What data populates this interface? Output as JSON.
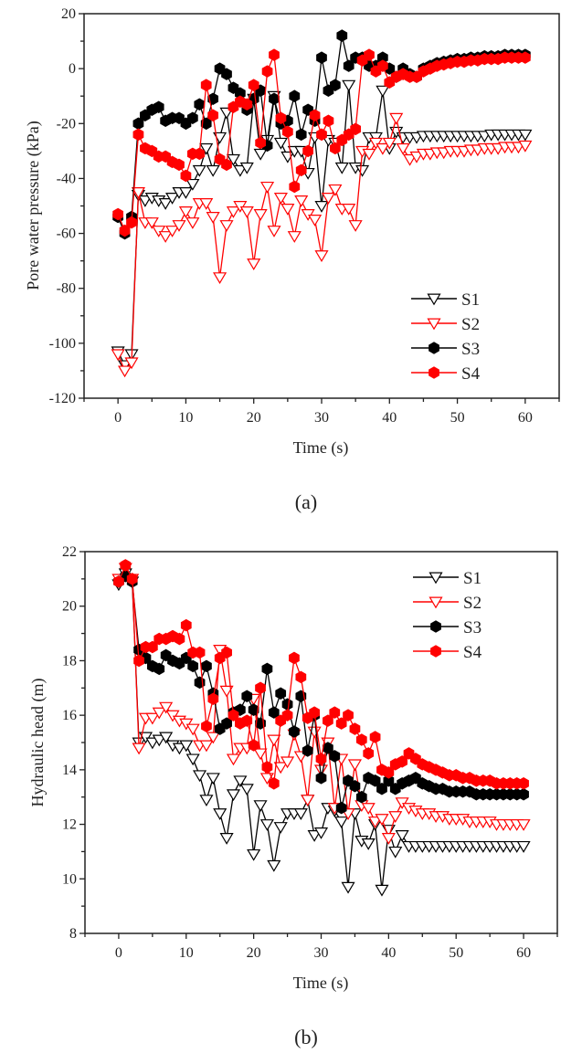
{
  "figure": {
    "panels": [
      "(a)",
      "(b)"
    ]
  },
  "chart_data": [
    {
      "type": "line",
      "panel_label": "(a)",
      "title": "",
      "xlabel": "Time (s)",
      "ylabel": "Pore water pressure (kPa)",
      "xlim": [
        -5,
        65
      ],
      "ylim": [
        -120,
        20
      ],
      "xticks": [
        0,
        10,
        20,
        30,
        40,
        50,
        60
      ],
      "yticks": [
        -120,
        -100,
        -80,
        -60,
        -40,
        -20,
        0,
        20
      ],
      "grid": false,
      "legend_position": "bottom-right",
      "x": [
        0,
        1,
        2,
        3,
        4,
        5,
        6,
        7,
        8,
        9,
        10,
        11,
        12,
        13,
        14,
        15,
        16,
        17,
        18,
        19,
        20,
        21,
        22,
        23,
        24,
        25,
        26,
        27,
        28,
        29,
        30,
        31,
        32,
        33,
        34,
        35,
        36,
        37,
        38,
        39,
        40,
        41,
        42,
        43,
        44,
        45,
        46,
        47,
        48,
        49,
        50,
        51,
        52,
        53,
        54,
        55,
        56,
        57,
        58,
        59,
        60
      ],
      "series": [
        {
          "name": "S1",
          "color": "#000000",
          "marker": "triangle-down-open",
          "values": [
            -103,
            -108,
            -104,
            -46,
            -48,
            -47,
            -48,
            -49,
            -47,
            -45,
            -45,
            -42,
            -37,
            -29,
            -37,
            -25,
            -16,
            -33,
            -37,
            -36,
            -11,
            -31,
            -26,
            -10,
            -27,
            -32,
            -30,
            -30,
            -38,
            -25,
            -50,
            -26,
            -27,
            -36,
            -6,
            -36,
            -37,
            -25,
            -25,
            -8,
            -29,
            -23,
            -25,
            -25,
            -25,
            -24.5,
            -24.5,
            -24.5,
            -24.5,
            -24.5,
            -24.5,
            -24.5,
            -24.5,
            -24.5,
            -24.5,
            -24,
            -24,
            -24,
            -24,
            -24,
            -24
          ]
        },
        {
          "name": "S2",
          "color": "#ff0000",
          "marker": "triangle-down-open",
          "values": [
            -104,
            -110,
            -107,
            -45,
            -56,
            -56,
            -59,
            -61,
            -59,
            -57,
            -52,
            -56,
            -49,
            -49,
            -54,
            -76,
            -57,
            -52,
            -50,
            -52,
            -71,
            -53,
            -43,
            -59,
            -47,
            -51,
            -61,
            -48,
            -53,
            -55,
            -68,
            -47,
            -44,
            -51,
            -51,
            -57,
            -30,
            -31,
            -27,
            -29,
            -27,
            -18,
            -29,
            -33,
            -32,
            -31,
            -31,
            -30.5,
            -30.5,
            -30,
            -30,
            -30,
            -29.5,
            -29.5,
            -29,
            -29,
            -29,
            -28.5,
            -28.5,
            -28.5,
            -28
          ]
        },
        {
          "name": "S3",
          "color": "#000000",
          "marker": "hexagon-filled",
          "values": [
            -54,
            -60,
            -54,
            -20,
            -17,
            -15,
            -14,
            -19,
            -18,
            -18,
            -20,
            -18,
            -13,
            -20,
            -11,
            0,
            -2,
            -7,
            -9,
            -15,
            -11,
            -8,
            -28,
            -11,
            -20,
            -19,
            -10,
            -24,
            -15,
            -19,
            4,
            -8,
            -6,
            12,
            1,
            4,
            4,
            1,
            1,
            4,
            0,
            -3,
            0,
            -2,
            -3,
            0,
            1,
            2,
            2.5,
            3,
            3.5,
            3.5,
            4,
            4,
            4.5,
            4.5,
            4.5,
            5,
            5,
            5,
            5
          ]
        },
        {
          "name": "S4",
          "color": "#ff0000",
          "marker": "hexagon-filled",
          "values": [
            -53,
            -59,
            -56,
            -24,
            -29,
            -30,
            -32,
            -32,
            -34,
            -35,
            -39,
            -31,
            -31,
            -6,
            -17,
            -33,
            -35,
            -14,
            -12,
            -13,
            -6,
            -27,
            -1,
            5,
            -18,
            -23,
            -43,
            -37,
            -30,
            -17,
            -24,
            -19,
            -29,
            -26,
            -24,
            -22,
            3,
            5,
            -1,
            1,
            -5,
            -3,
            -2,
            -3,
            -3,
            -1,
            0,
            1,
            1.5,
            2,
            2.5,
            2.5,
            3,
            3,
            3.5,
            3.5,
            3.5,
            4,
            4,
            4,
            4
          ]
        }
      ]
    },
    {
      "type": "line",
      "panel_label": "(b)",
      "title": "",
      "xlabel": "Time (s)",
      "ylabel": "Hydraulic head (m)",
      "xlim": [
        -5,
        65
      ],
      "ylim": [
        8,
        22
      ],
      "xticks": [
        0,
        10,
        20,
        30,
        40,
        50,
        60
      ],
      "yticks": [
        8,
        10,
        12,
        14,
        16,
        18,
        20,
        22
      ],
      "grid": false,
      "legend_position": "top-right",
      "x": [
        0,
        1,
        2,
        3,
        4,
        5,
        6,
        7,
        8,
        9,
        10,
        11,
        12,
        13,
        14,
        15,
        16,
        17,
        18,
        19,
        20,
        21,
        22,
        23,
        24,
        25,
        26,
        27,
        28,
        29,
        30,
        31,
        32,
        33,
        34,
        35,
        36,
        37,
        38,
        39,
        40,
        41,
        42,
        43,
        44,
        45,
        46,
        47,
        48,
        49,
        50,
        51,
        52,
        53,
        54,
        55,
        56,
        57,
        58,
        59,
        60
      ],
      "series": [
        {
          "name": "S1",
          "color": "#000000",
          "marker": "triangle-down-open",
          "values": [
            20.8,
            21.2,
            20.9,
            15.0,
            15.2,
            15.0,
            15.1,
            15.2,
            14.9,
            14.8,
            14.9,
            14.4,
            13.8,
            12.9,
            13.7,
            12.4,
            11.5,
            13.1,
            13.6,
            13.3,
            10.9,
            12.7,
            12.0,
            10.5,
            11.9,
            12.4,
            12.4,
            12.4,
            12.9,
            11.6,
            11.7,
            12.6,
            12.5,
            12.1,
            9.7,
            12.4,
            11.4,
            11.3,
            12.0,
            9.6,
            11.8,
            11.0,
            11.6,
            11.2,
            11.2,
            11.2,
            11.2,
            11.2,
            11.2,
            11.2,
            11.2,
            11.2,
            11.2,
            11.2,
            11.2,
            11.2,
            11.2,
            11.2,
            11.2,
            11.2,
            11.2
          ]
        },
        {
          "name": "S2",
          "color": "#ff0000",
          "marker": "triangle-down-open",
          "values": [
            21.0,
            21.4,
            21.0,
            14.8,
            15.9,
            15.9,
            16.1,
            16.3,
            16.0,
            15.8,
            15.7,
            15.5,
            14.9,
            14.9,
            15.2,
            18.4,
            16.9,
            14.4,
            14.8,
            14.8,
            16.6,
            14.6,
            13.7,
            15.1,
            14.1,
            14.3,
            15.3,
            14.5,
            12.9,
            15.4,
            14.0,
            15.0,
            12.6,
            14.4,
            12.4,
            14.2,
            12.7,
            12.6,
            12.1,
            12.2,
            11.5,
            12.3,
            12.8,
            12.6,
            12.5,
            12.4,
            12.4,
            12.3,
            12.3,
            12.2,
            12.2,
            12.2,
            12.1,
            12.1,
            12.1,
            12.1,
            12.0,
            12.0,
            12.0,
            12.0,
            12.0
          ]
        },
        {
          "name": "S3",
          "color": "#000000",
          "marker": "hexagon-filled",
          "values": [
            20.9,
            21.1,
            20.9,
            18.4,
            18.1,
            17.8,
            17.7,
            18.2,
            18.0,
            17.9,
            18.1,
            17.8,
            17.2,
            17.8,
            16.8,
            15.5,
            15.7,
            16.1,
            16.2,
            16.7,
            16.2,
            15.7,
            17.7,
            16.1,
            16.8,
            16.4,
            15.4,
            16.7,
            14.7,
            16.0,
            13.7,
            14.8,
            14.5,
            12.6,
            13.6,
            13.4,
            13.0,
            13.7,
            13.6,
            13.3,
            13.6,
            13.3,
            13.5,
            13.6,
            13.7,
            13.5,
            13.4,
            13.3,
            13.3,
            13.2,
            13.2,
            13.2,
            13.2,
            13.1,
            13.1,
            13.1,
            13.1,
            13.1,
            13.1,
            13.1,
            13.1
          ]
        },
        {
          "name": "S4",
          "color": "#ff0000",
          "marker": "hexagon-filled",
          "values": [
            20.9,
            21.5,
            21.0,
            18.0,
            18.5,
            18.5,
            18.8,
            18.8,
            18.9,
            18.8,
            19.3,
            18.3,
            18.3,
            15.6,
            16.6,
            18.1,
            18.3,
            16.0,
            15.7,
            15.8,
            14.9,
            17.0,
            14.1,
            13.5,
            15.8,
            16.0,
            18.1,
            17.4,
            15.9,
            16.1,
            14.4,
            15.8,
            16.1,
            15.7,
            16.0,
            15.5,
            15.1,
            14.6,
            15.2,
            14.0,
            13.9,
            14.2,
            14.3,
            14.6,
            14.4,
            14.2,
            14.1,
            14.0,
            13.9,
            13.8,
            13.8,
            13.7,
            13.7,
            13.6,
            13.6,
            13.6,
            13.5,
            13.5,
            13.5,
            13.5,
            13.5
          ]
        }
      ]
    }
  ]
}
